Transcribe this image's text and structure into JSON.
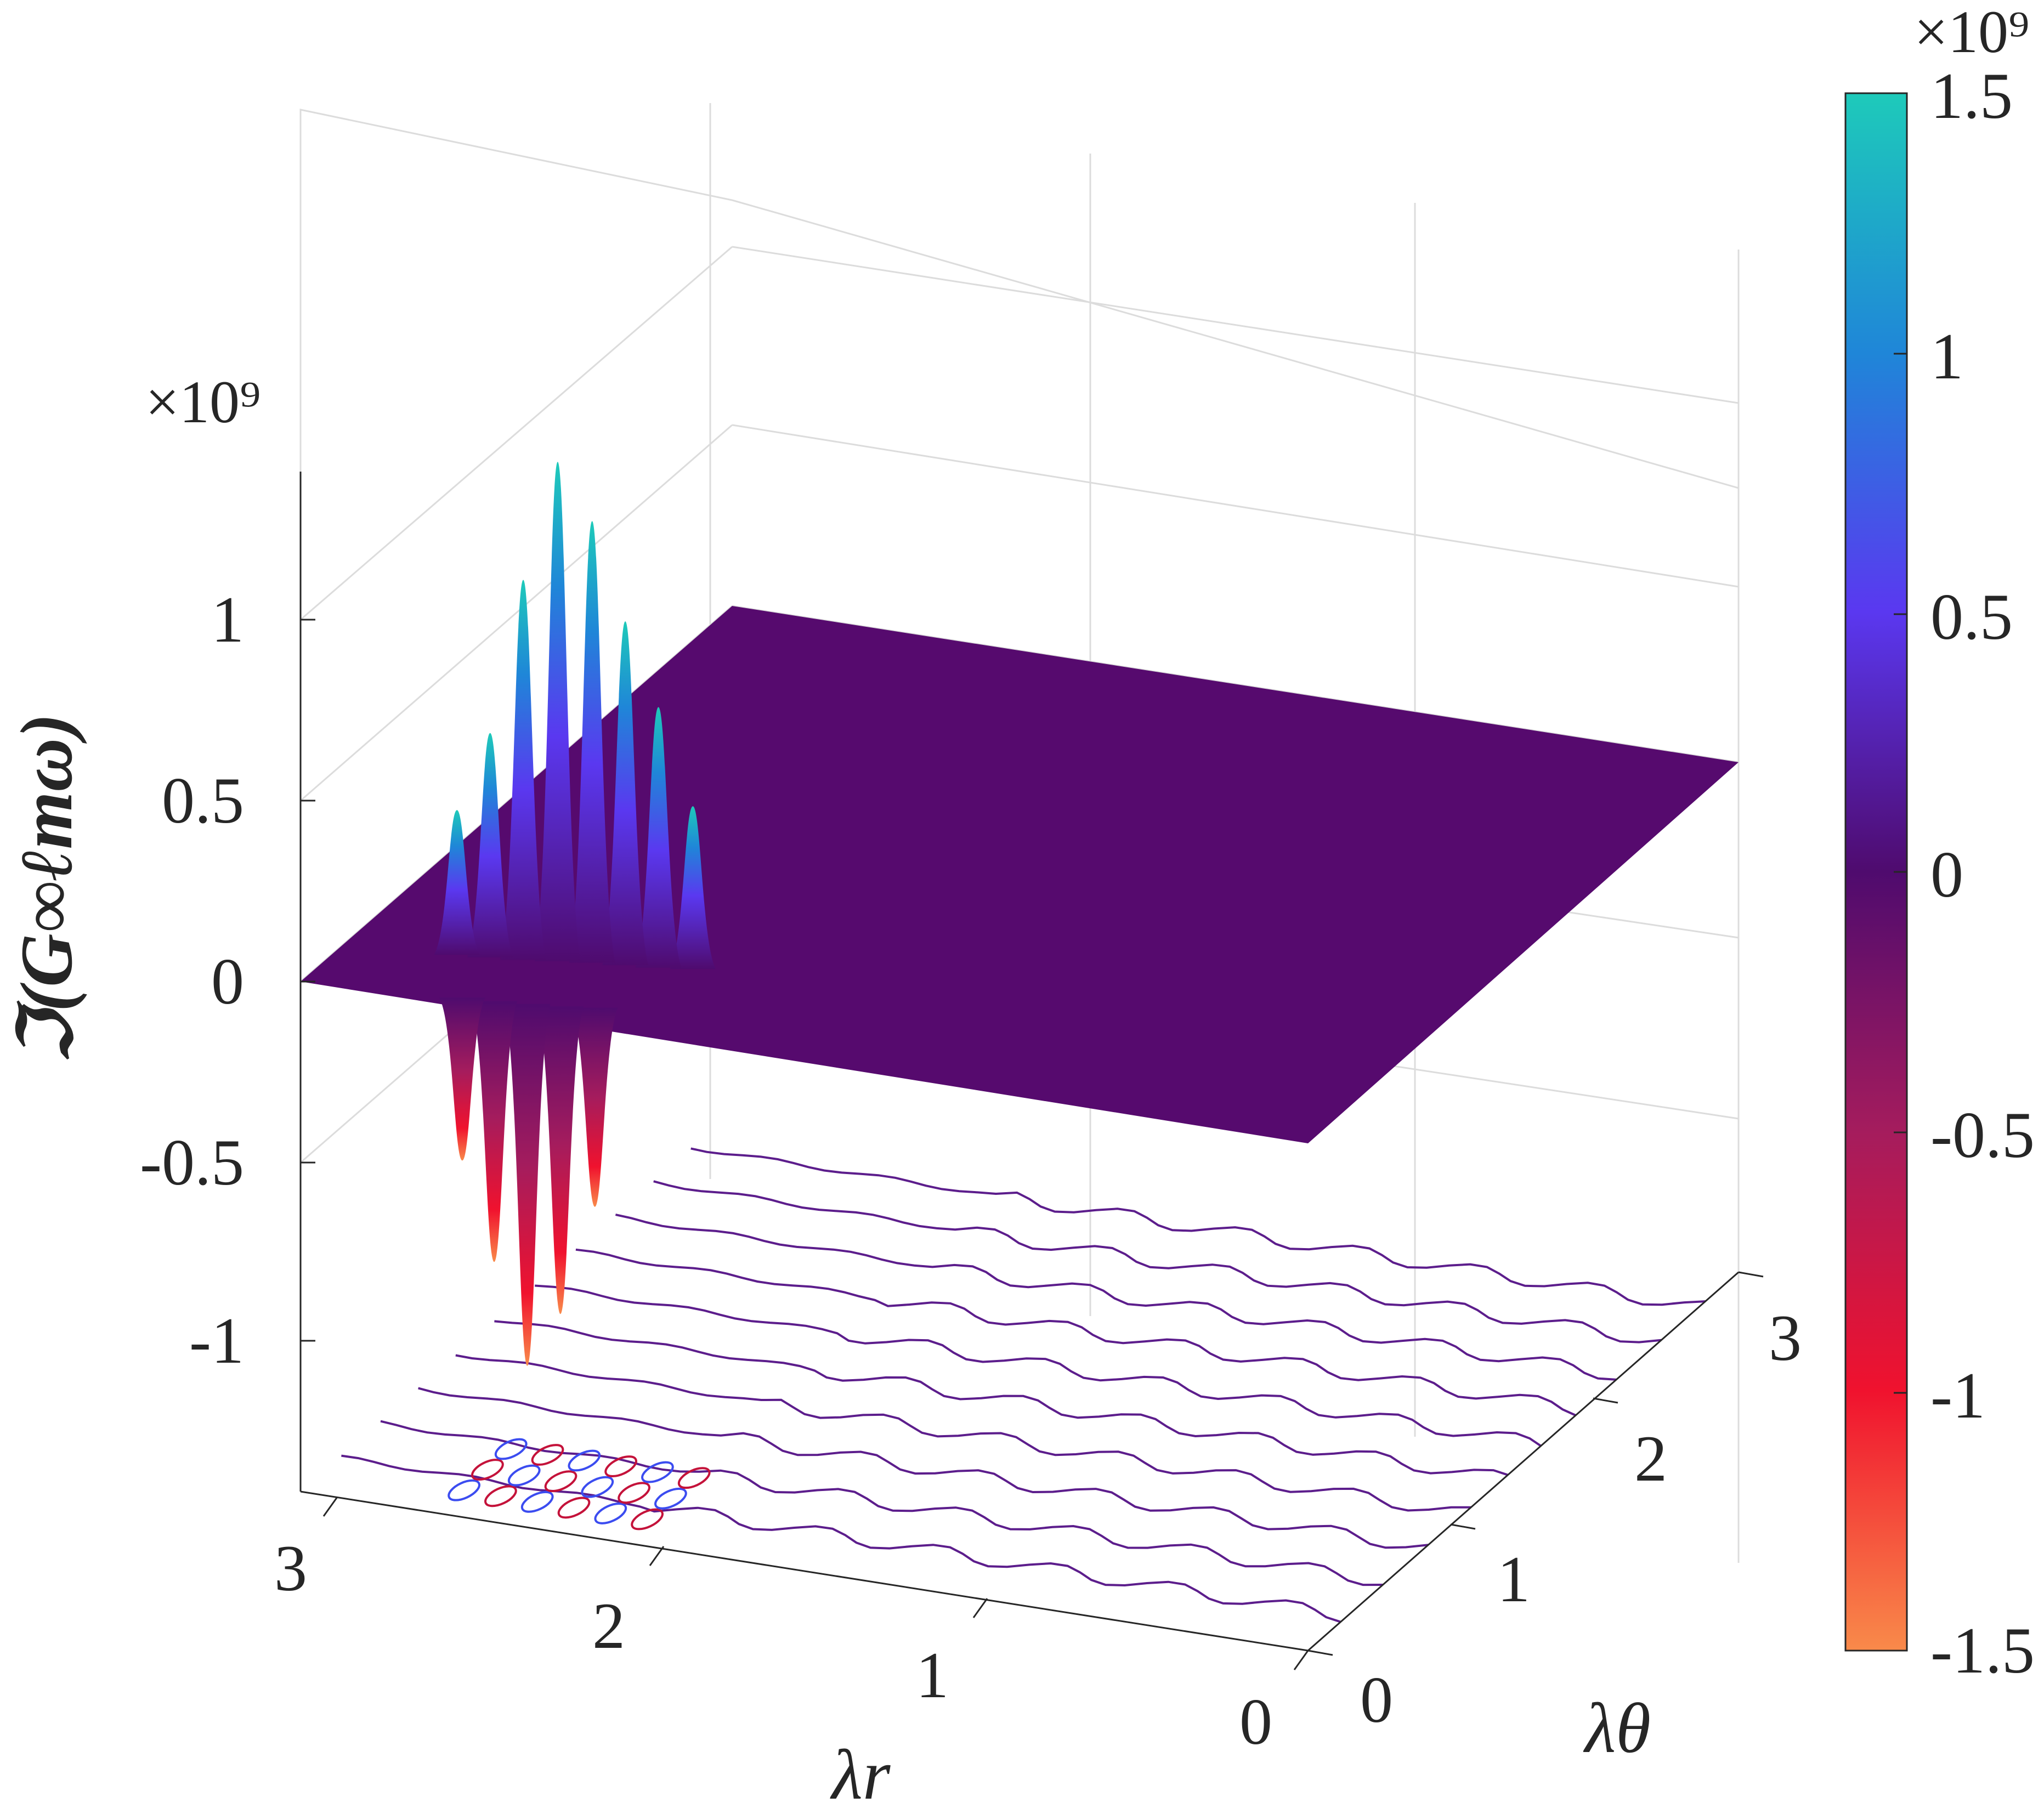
{
  "chart_data": {
    "type": "surface3d",
    "title": "",
    "xlabel": "λr",
    "ylabel": "λθ",
    "zlabel": "ℑ(G∞ℓmω)",
    "x_ticks": [
      "0",
      "1",
      "2",
      "3"
    ],
    "y_ticks": [
      "0",
      "1",
      "2",
      "3"
    ],
    "z_ticks": [
      "-1",
      "-0.5",
      "0",
      "0.5",
      "1"
    ],
    "z_exponent": "×10⁹",
    "xlim": [
      0,
      3.3
    ],
    "ylim": [
      0,
      3.3
    ],
    "zlim": [
      -1.35,
      1.35
    ],
    "z_scale": 1000000000,
    "colorbar": {
      "ticks": [
        "-1.5",
        "-1",
        "-0.5",
        "0",
        "0.5",
        "1",
        "1.5"
      ],
      "limits": [
        -1.5,
        1.5
      ],
      "exponent": "×10⁹",
      "colors": [
        "#f98a4a",
        "#f0122e",
        "#a51c5d",
        "#4f0b6e",
        "#5a38f0",
        "#1f86d8",
        "#1ecaba"
      ]
    },
    "peaks": [
      {
        "lambda_r": 2.65,
        "lambda_theta": 0.45,
        "value": 1.38
      },
      {
        "lambda_r": 2.55,
        "lambda_theta": 0.48,
        "value": 1.22
      },
      {
        "lambda_r": 2.75,
        "lambda_theta": 0.42,
        "value": 1.05
      },
      {
        "lambda_r": 2.45,
        "lambda_theta": 0.5,
        "value": 0.95
      },
      {
        "lambda_r": 2.35,
        "lambda_theta": 0.52,
        "value": 0.72
      },
      {
        "lambda_r": 2.85,
        "lambda_theta": 0.4,
        "value": 0.62
      },
      {
        "lambda_r": 2.25,
        "lambda_theta": 0.55,
        "value": 0.45
      },
      {
        "lambda_r": 2.95,
        "lambda_theta": 0.38,
        "value": 0.4
      },
      {
        "lambda_r": 2.6,
        "lambda_theta": 0.1,
        "value": -1.0
      },
      {
        "lambda_r": 2.5,
        "lambda_theta": 0.12,
        "value": -0.85
      },
      {
        "lambda_r": 2.7,
        "lambda_theta": 0.08,
        "value": -0.72
      },
      {
        "lambda_r": 2.4,
        "lambda_theta": 0.15,
        "value": -0.55
      },
      {
        "lambda_r": 2.8,
        "lambda_theta": 0.07,
        "value": -0.45
      }
    ]
  }
}
